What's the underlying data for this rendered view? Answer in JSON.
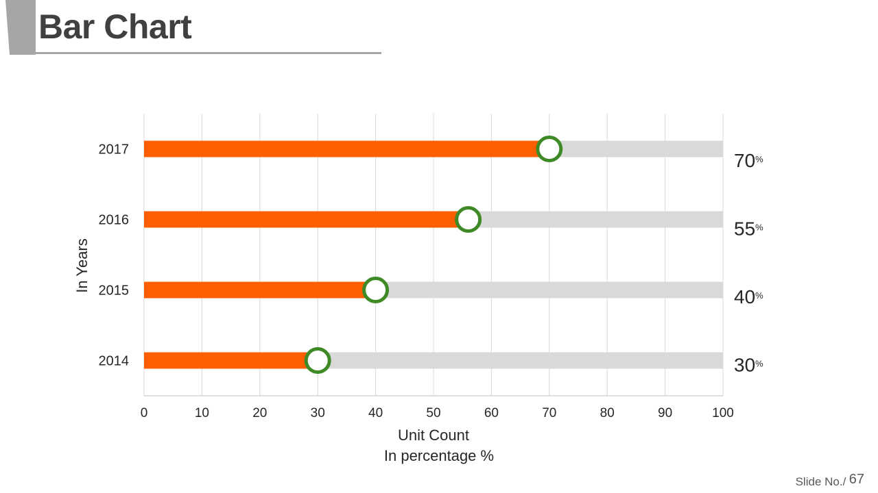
{
  "slide": {
    "title": "Bar Chart",
    "footer_label": "Slide No./",
    "footer_number": "67"
  },
  "colors": {
    "bar": "#ff5f00",
    "track": "#d9d9d9",
    "marker_ring": "#3f8a26",
    "grid": "#d9d9d9",
    "axis_text": "#262626",
    "title_accent": "#a6a6a6"
  },
  "chart_data": {
    "type": "bar",
    "orientation": "horizontal",
    "categories": [
      "2014",
      "2015",
      "2016",
      "2017"
    ],
    "values": [
      30,
      40,
      55,
      70
    ],
    "marker_positions": [
      30,
      40,
      56,
      70
    ],
    "value_labels": [
      "30",
      "40",
      "55",
      "70"
    ],
    "value_suffix": "%",
    "xlabel": "Unit Count",
    "xlabel_sub": "In percentage  %",
    "ylabel": "In Years",
    "xlim": [
      0,
      100
    ],
    "xticks": [
      0,
      10,
      20,
      30,
      40,
      50,
      60,
      70,
      80,
      90,
      100
    ],
    "grid": true
  }
}
